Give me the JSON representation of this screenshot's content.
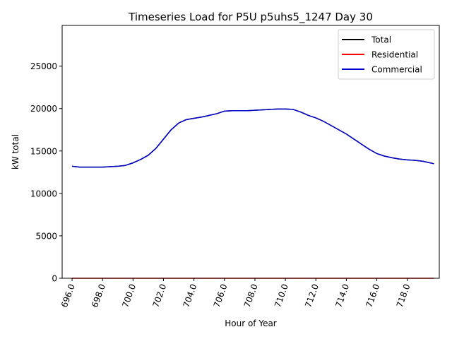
{
  "chart_data": {
    "type": "line",
    "title": "Timeseries Load for P5U p5uhs5_1247  Day 30",
    "xlabel": "Hour of Year",
    "ylabel": "kW total",
    "xlim": [
      695.35,
      720.1
    ],
    "ylim": [
      0,
      29800
    ],
    "xticks": [
      696,
      698,
      700,
      702,
      704,
      706,
      708,
      710,
      712,
      714,
      716,
      718
    ],
    "xtick_labels": [
      "696.0",
      "698.0",
      "700.0",
      "702.0",
      "704.0",
      "706.0",
      "708.0",
      "710.0",
      "712.0",
      "714.0",
      "716.0",
      "718.0"
    ],
    "yticks": [
      0,
      5000,
      10000,
      15000,
      20000,
      25000
    ],
    "ytick_labels": [
      "0",
      "5000",
      "10000",
      "15000",
      "20000",
      "25000"
    ],
    "grid": false,
    "legend_position": "top-right",
    "x": [
      696.0,
      696.5,
      697.0,
      697.5,
      698.0,
      698.5,
      699.0,
      699.5,
      700.0,
      700.5,
      701.0,
      701.5,
      702.0,
      702.5,
      703.0,
      703.5,
      704.0,
      704.5,
      705.0,
      705.5,
      706.0,
      706.5,
      707.0,
      707.5,
      708.0,
      708.5,
      709.0,
      709.5,
      710.0,
      710.5,
      711.0,
      711.5,
      712.0,
      712.5,
      713.0,
      713.5,
      714.0,
      714.5,
      715.0,
      715.5,
      716.0,
      716.5,
      717.0,
      717.5,
      718.0,
      718.5,
      719.0,
      719.75
    ],
    "series": [
      {
        "name": "Total",
        "color": "#000000",
        "values": [
          13200,
          13100,
          13100,
          13100,
          13100,
          13150,
          13200,
          13300,
          13600,
          14000,
          14500,
          15300,
          16400,
          17500,
          18300,
          18700,
          18850,
          19000,
          19200,
          19400,
          19700,
          19750,
          19750,
          19750,
          19800,
          19850,
          19900,
          19950,
          19950,
          19900,
          19600,
          19200,
          18900,
          18500,
          18000,
          17500,
          17000,
          16400,
          15800,
          15200,
          14700,
          14400,
          14200,
          14050,
          13950,
          13900,
          13800,
          13500
        ]
      },
      {
        "name": "Residential",
        "color": "#ff0000",
        "values": [
          0,
          0,
          0,
          0,
          0,
          0,
          0,
          0,
          0,
          0,
          0,
          0,
          0,
          0,
          0,
          0,
          0,
          0,
          0,
          0,
          0,
          0,
          0,
          0,
          0,
          0,
          0,
          0,
          0,
          0,
          0,
          0,
          0,
          0,
          0,
          0,
          0,
          0,
          0,
          0,
          0,
          0,
          0,
          0,
          0,
          0,
          0,
          0
        ]
      },
      {
        "name": "Commercial",
        "color": "#0000cc",
        "values": [
          13200,
          13100,
          13100,
          13100,
          13100,
          13150,
          13200,
          13300,
          13600,
          14000,
          14500,
          15300,
          16400,
          17500,
          18300,
          18700,
          18850,
          19000,
          19200,
          19400,
          19700,
          19750,
          19750,
          19750,
          19800,
          19850,
          19900,
          19950,
          19950,
          19900,
          19600,
          19200,
          18900,
          18500,
          18000,
          17500,
          17000,
          16400,
          15800,
          15200,
          14700,
          14400,
          14200,
          14050,
          13950,
          13900,
          13800,
          13500
        ]
      }
    ]
  }
}
